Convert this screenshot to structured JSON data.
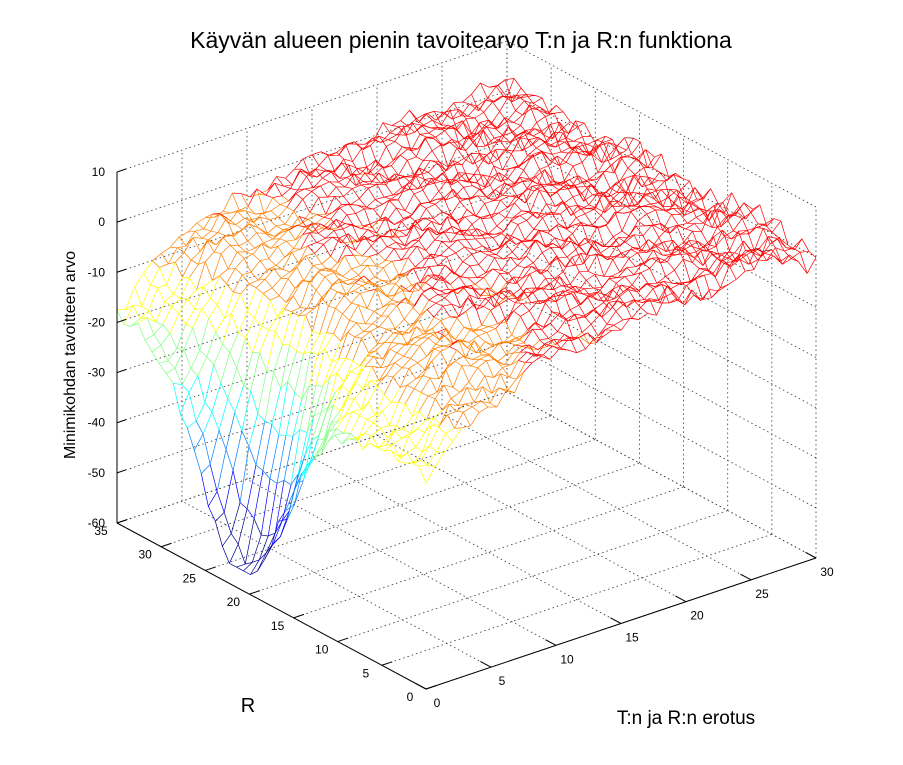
{
  "chart_data": {
    "type": "surface",
    "title": "Käyvän alueen pienin tavoitearvo T:n ja R:n funktiona",
    "xlabel": "T:n ja R:n erotus",
    "ylabel": "R",
    "zlabel": "Minimikohdan tavoitteen arvo",
    "xlim": [
      0,
      30
    ],
    "ylim": [
      0,
      35
    ],
    "zlim": [
      -60,
      10
    ],
    "xticks": [
      "0",
      "5",
      "10",
      "15",
      "20",
      "25",
      "30"
    ],
    "yticks": [
      "0",
      "5",
      "10",
      "15",
      "20",
      "25",
      "30",
      "35"
    ],
    "zticks": [
      "10",
      "0",
      "-10",
      "-20",
      "-30",
      "-40",
      "-50",
      "-60"
    ],
    "colormap": "jet",
    "grid": true,
    "mesh_colors": [
      "#00008f",
      "#0000ff",
      "#0080ff",
      "#00ffff",
      "#80ff80",
      "#ffff00",
      "#ff8000",
      "#ff0000",
      "#800000"
    ]
  }
}
